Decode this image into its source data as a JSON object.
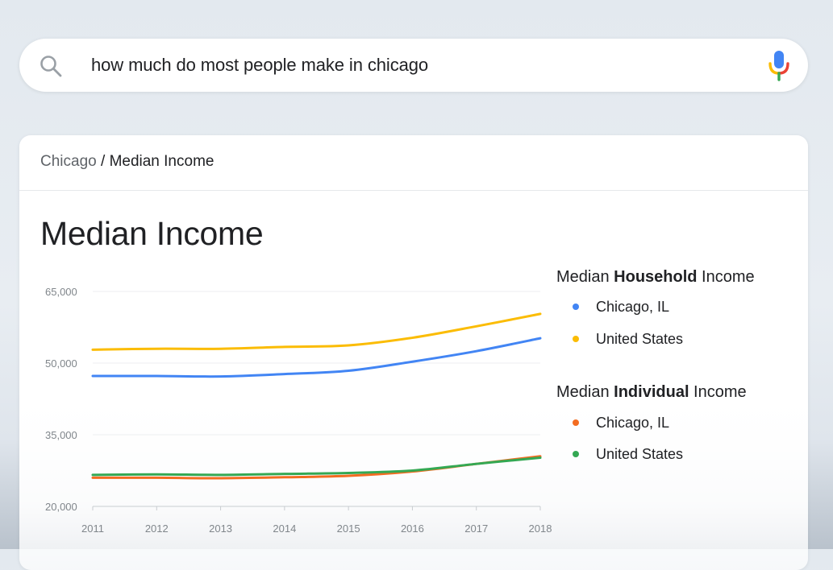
{
  "search": {
    "query": "how much do most people make in chicago"
  },
  "breadcrumb": {
    "parent": "Chicago",
    "separator": " / ",
    "current": "Median Income"
  },
  "title": "Median Income",
  "legend": {
    "groups": [
      {
        "prefix": "Median ",
        "bold": "Household",
        "suffix": " Income",
        "items": [
          {
            "label": "Chicago, IL",
            "color": "#4285f4"
          },
          {
            "label": "United States",
            "color": "#fbbc04"
          }
        ]
      },
      {
        "prefix": "Median ",
        "bold": "Individual",
        "suffix": " Income",
        "items": [
          {
            "label": "Chicago, IL",
            "color": "#f36c21"
          },
          {
            "label": "United States",
            "color": "#34a853"
          }
        ]
      }
    ]
  },
  "chart_data": {
    "type": "line",
    "x": [
      2011,
      2012,
      2013,
      2014,
      2015,
      2016,
      2017,
      2018
    ],
    "x_tick_labels": [
      "2011",
      "2012",
      "2013",
      "2014",
      "2015",
      "2016",
      "2017",
      "2018"
    ],
    "y_ticks": [
      20000,
      35000,
      50000,
      65000
    ],
    "y_tick_labels": [
      "20,000",
      "35,000",
      "50,000",
      "65,000"
    ],
    "ylim": [
      20000,
      65000
    ],
    "grid": true,
    "legend_position": "right",
    "series": [
      {
        "name": "Median Household Income — Chicago, IL",
        "color": "#4285f4",
        "values": [
          47300,
          47300,
          47200,
          47700,
          48400,
          50300,
          52500,
          55200
        ]
      },
      {
        "name": "Median Household Income — United States",
        "color": "#fbbc04",
        "values": [
          52800,
          53000,
          53000,
          53400,
          53700,
          55300,
          57700,
          60300
        ]
      },
      {
        "name": "Median Individual Income — Chicago, IL",
        "color": "#f36c21",
        "values": [
          26000,
          26000,
          25900,
          26100,
          26400,
          27300,
          28900,
          30500
        ]
      },
      {
        "name": "Median Individual Income — United States",
        "color": "#34a853",
        "values": [
          26600,
          26700,
          26600,
          26800,
          27000,
          27500,
          28900,
          30200
        ]
      }
    ]
  }
}
